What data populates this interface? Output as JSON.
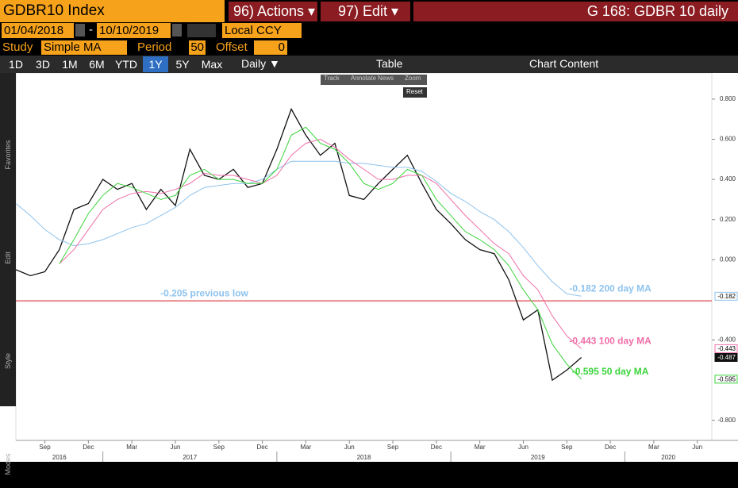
{
  "toolbar": {
    "ticker": "GDBR10 Index",
    "actions": "96) Actions ▾",
    "edit": "97) Edit ▾",
    "page_title": "G 168: GDBR 10 daily",
    "start_date": "01/04/2018",
    "date_sep": "-",
    "end_date": "10/10/2019",
    "currency": "Local CCY",
    "study_label": "Study",
    "study": "Simple MA",
    "period_label": "Period",
    "period": "50",
    "offset_label": "Offset",
    "offset": "0",
    "ranges": [
      "1D",
      "3D",
      "1M",
      "6M",
      "YTD",
      "1Y",
      "5Y",
      "Max"
    ],
    "active_range": "1Y",
    "frequency": "Daily ▼",
    "table": "Table",
    "chart_content": "Chart Content",
    "mini_tools": [
      "Track",
      "Annotate",
      "News",
      "Zoom"
    ],
    "reset": "Reset",
    "side_labels": [
      "Favorites",
      "Edit",
      "Style",
      "Modes"
    ]
  },
  "chart_data": {
    "type": "line",
    "x": [
      "2016-07",
      "2016-08",
      "2016-09",
      "2016-10",
      "2016-11",
      "2016-12",
      "2017-01",
      "2017-02",
      "2017-03",
      "2017-04",
      "2017-05",
      "2017-06",
      "2017-07",
      "2017-08",
      "2017-09",
      "2017-10",
      "2017-11",
      "2017-12",
      "2018-01",
      "2018-02",
      "2018-03",
      "2018-04",
      "2018-05",
      "2018-06",
      "2018-07",
      "2018-08",
      "2018-09",
      "2018-10",
      "2018-11",
      "2018-12",
      "2019-01",
      "2019-02",
      "2019-03",
      "2019-04",
      "2019-05",
      "2019-06",
      "2019-07",
      "2019-08",
      "2019-09",
      "2019-10"
    ],
    "series": [
      {
        "color": "#111111",
        "values": [
          -0.05,
          -0.08,
          -0.06,
          0.05,
          0.25,
          0.28,
          0.4,
          0.35,
          0.38,
          0.25,
          0.35,
          0.27,
          0.55,
          0.42,
          0.4,
          0.45,
          0.36,
          0.38,
          0.55,
          0.75,
          0.62,
          0.52,
          0.58,
          0.32,
          0.3,
          0.38,
          0.45,
          0.52,
          0.38,
          0.25,
          0.18,
          0.1,
          0.05,
          0.03,
          -0.1,
          -0.3,
          -0.25,
          -0.6,
          -0.55,
          -0.487
        ]
      },
      {
        "color": "#8ec3ee",
        "values": [
          0.28,
          0.22,
          0.15,
          0.1,
          0.07,
          0.08,
          0.1,
          0.13,
          0.16,
          0.18,
          0.22,
          0.26,
          0.32,
          0.36,
          0.37,
          0.38,
          0.38,
          0.4,
          0.45,
          0.49,
          0.49,
          0.49,
          0.49,
          0.48,
          0.48,
          0.47,
          0.46,
          0.46,
          0.44,
          0.39,
          0.33,
          0.29,
          0.24,
          0.2,
          0.14,
          0.06,
          -0.03,
          -0.11,
          -0.17,
          -0.182
        ]
      },
      {
        "color": "#f06fa8",
        "values": [
          null,
          null,
          null,
          -0.02,
          0.05,
          0.15,
          0.25,
          0.3,
          0.33,
          0.34,
          0.33,
          0.35,
          0.38,
          0.43,
          0.42,
          0.42,
          0.4,
          0.38,
          0.42,
          0.52,
          0.58,
          0.6,
          0.56,
          0.5,
          0.45,
          0.4,
          0.4,
          0.42,
          0.42,
          0.38,
          0.3,
          0.22,
          0.15,
          0.08,
          0.03,
          -0.08,
          -0.15,
          -0.28,
          -0.38,
          -0.443
        ]
      },
      {
        "color": "#3bd43b",
        "values": [
          null,
          null,
          null,
          -0.02,
          0.1,
          0.23,
          0.32,
          0.38,
          0.36,
          0.33,
          0.3,
          0.32,
          0.42,
          0.45,
          0.4,
          0.4,
          0.38,
          0.38,
          0.45,
          0.62,
          0.66,
          0.58,
          0.55,
          0.48,
          0.38,
          0.35,
          0.38,
          0.45,
          0.42,
          0.3,
          0.22,
          0.14,
          0.1,
          0.05,
          -0.03,
          -0.15,
          -0.25,
          -0.42,
          -0.52,
          -0.595
        ]
      }
    ],
    "xlim": [
      "2016-07",
      "2020-07"
    ],
    "xticks": [
      {
        "value": "2016-09",
        "label": "Sep"
      },
      {
        "value": "2016-12",
        "label": "Dec"
      },
      {
        "value": "2017-03",
        "label": "Mar"
      },
      {
        "value": "2017-06",
        "label": "Jun"
      },
      {
        "value": "2017-09",
        "label": "Sep"
      },
      {
        "value": "2017-12",
        "label": "Dec"
      },
      {
        "value": "2018-03",
        "label": "Mar"
      },
      {
        "value": "2018-06",
        "label": "Jun"
      },
      {
        "value": "2018-09",
        "label": "Sep"
      },
      {
        "value": "2018-12",
        "label": "Dec"
      },
      {
        "value": "2019-03",
        "label": "Mar"
      },
      {
        "value": "2019-06",
        "label": "Jun"
      },
      {
        "value": "2019-09",
        "label": "Sep"
      },
      {
        "value": "2019-12",
        "label": "Dec"
      },
      {
        "value": "2020-03",
        "label": "Mar"
      },
      {
        "value": "2020-06",
        "label": "Jun"
      }
    ],
    "years": [
      "2016",
      "2017",
      "2018",
      "2019",
      "2020"
    ],
    "ylim": [
      -0.9,
      0.93
    ],
    "yticks": [
      {
        "value": 0.8,
        "label": "0.800"
      },
      {
        "value": 0.6,
        "label": "0.600"
      },
      {
        "value": 0.4,
        "label": "0.400"
      },
      {
        "value": 0.2,
        "label": "0.200"
      },
      {
        "value": 0,
        "label": "0.000"
      },
      {
        "value": -0.4,
        "label": "-0.400"
      },
      {
        "value": -0.8,
        "label": "-0.800"
      }
    ],
    "ytags": [
      {
        "value": -0.182,
        "label": "-0.182",
        "color": "#8ec3ee"
      },
      {
        "value": -0.443,
        "label": "-0.443",
        "color": "#f06fa8"
      },
      {
        "value": -0.487,
        "label": "-0.487",
        "color": "#111111"
      },
      {
        "value": -0.595,
        "label": "-0.595",
        "color": "#3bd43b"
      }
    ],
    "hlines": [
      {
        "value": -0.205,
        "color": "#e0474c"
      }
    ],
    "annotations": [
      {
        "text": "-0.205 previous low",
        "color": "#8ec3ee",
        "value": -0.205,
        "at": "2017-08"
      },
      {
        "text": "-0.182 200 day MA",
        "color": "#8ec3ee",
        "value": -0.182,
        "at": "2019-12"
      },
      {
        "text": "-0.443 100 day MA",
        "color": "#f06fa8",
        "value": -0.443,
        "at": "2019-12"
      },
      {
        "text": "-0.595 50 day MA",
        "color": "#3bd43b",
        "value": -0.595,
        "at": "2019-12"
      }
    ]
  }
}
